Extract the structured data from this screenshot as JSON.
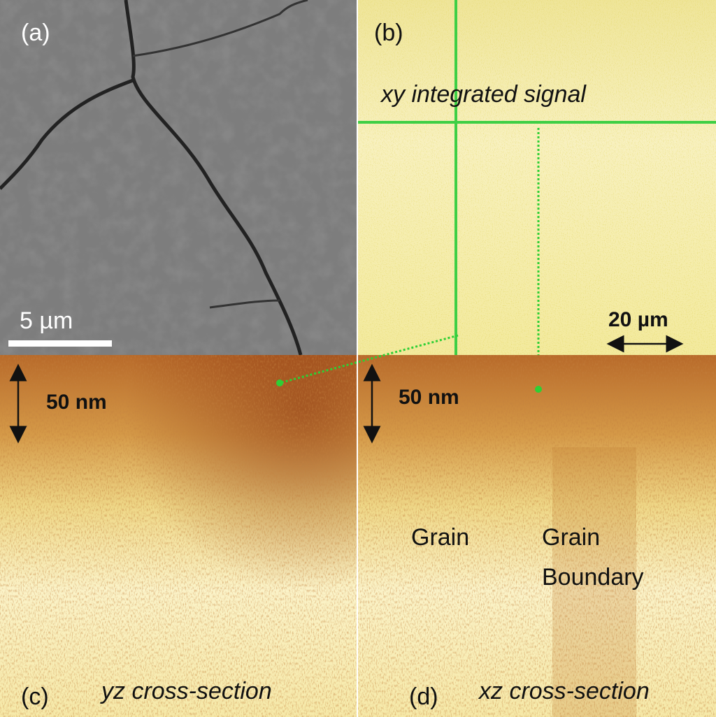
{
  "panels": [
    {
      "label": "(a)",
      "scale_bar": "5 µm"
    },
    {
      "label": "(b)",
      "caption": "xy integrated signal",
      "scale_bar": "20 µm"
    },
    {
      "label": "(c)",
      "caption": "yz cross-section",
      "scale_bar": "50 nm"
    },
    {
      "label": "(d)",
      "caption": "xz cross-section",
      "scale_bar": "50 nm",
      "annotations": [
        {
          "lines": [
            "Grain"
          ]
        },
        {
          "lines": [
            "Grain",
            "Boundary"
          ]
        }
      ]
    }
  ]
}
